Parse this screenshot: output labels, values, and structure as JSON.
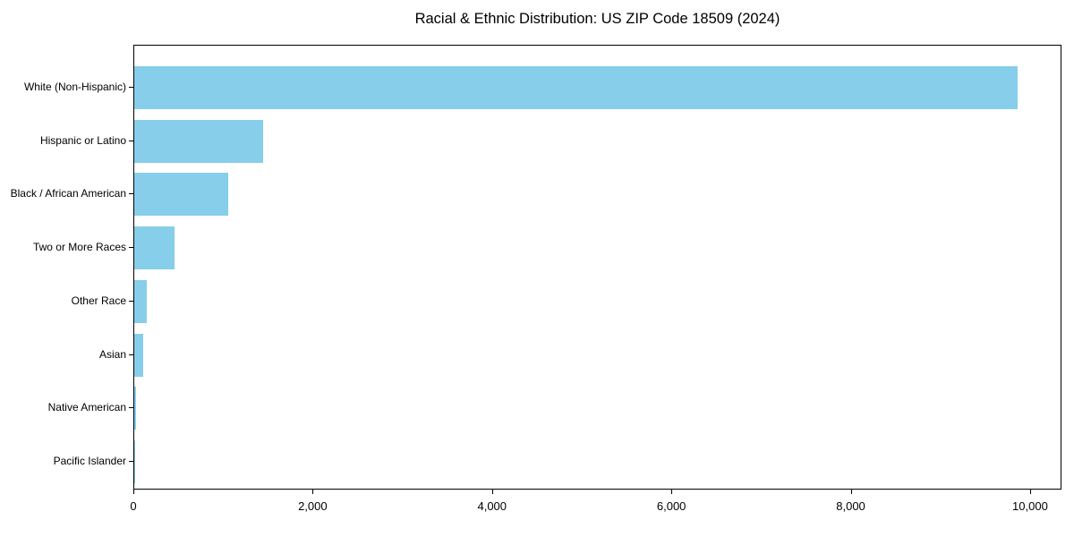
{
  "title": "Racial & Ethnic Distribution: US ZIP Code 18509 (2024)",
  "colors": {
    "bar": "#87CEEB",
    "axis": "#000000",
    "text": "#000000",
    "background": "#ffffff"
  },
  "chart_data": {
    "type": "bar",
    "orientation": "horizontal",
    "title": "Racial & Ethnic Distribution: US ZIP Code 18509 (2024)",
    "xlabel": "",
    "ylabel": "",
    "categories": [
      "White (Non-Hispanic)",
      "Hispanic or Latino",
      "Black / African American",
      "Two or More Races",
      "Other Race",
      "Asian",
      "Native American",
      "Pacific Islander"
    ],
    "values": [
      9850,
      1440,
      1045,
      450,
      135,
      95,
      18,
      10
    ],
    "bar_color": "#87CEEB",
    "xlim": [
      0,
      10350
    ],
    "x_ticks": [
      0,
      2000,
      4000,
      6000,
      8000,
      10000
    ],
    "x_tick_labels": [
      "0",
      "2,000",
      "4,000",
      "6,000",
      "8,000",
      "10,000"
    ],
    "grid": false,
    "legend": "none"
  }
}
